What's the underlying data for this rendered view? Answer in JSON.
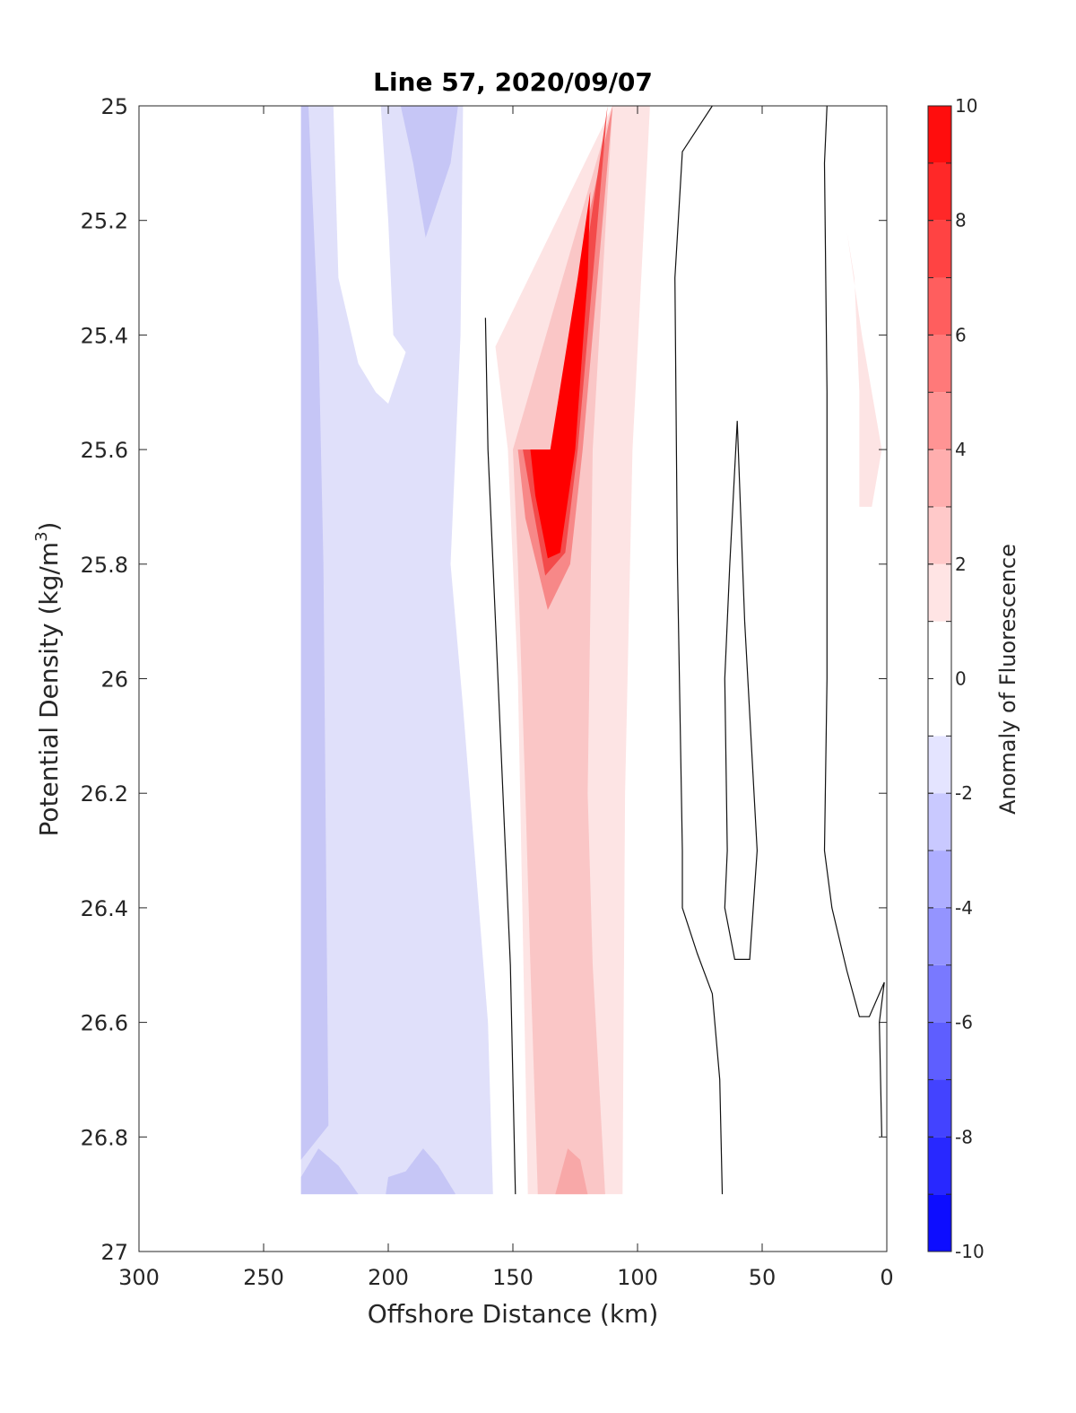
{
  "chart_data": {
    "type": "contour",
    "title": "Line 57, 2020/09/07",
    "xlabel": "Offshore Distance (km)",
    "ylabel": "Potential Density (kg/m^3)",
    "ylabel_main": "Potential Density (kg/m",
    "ylabel_sup": "3",
    "ylabel_end": ")",
    "xlim": [
      0,
      300
    ],
    "x_reversed": true,
    "x_ticks": [
      300,
      250,
      200,
      150,
      100,
      50,
      0
    ],
    "ylim": [
      25,
      27
    ],
    "y_reversed": true,
    "y_ticks": [
      25,
      25.2,
      25.4,
      25.6,
      25.8,
      26,
      26.2,
      26.4,
      26.6,
      26.8,
      27
    ],
    "y_tick_labels": [
      "25",
      "25.2",
      "25.4",
      "25.6",
      "25.8",
      "26",
      "26.2",
      "26.4",
      "26.6",
      "26.8",
      "27"
    ],
    "colorbar": {
      "label": "Anomaly of Fluorescence",
      "range": [
        -10,
        10
      ],
      "levels": [
        -10,
        -9,
        -8,
        -7,
        -6,
        -5,
        -4,
        -3,
        -2,
        -1,
        1,
        2,
        3,
        4,
        5,
        6,
        7,
        8,
        9,
        10
      ],
      "tick_values": [
        -10,
        -8,
        -6,
        -4,
        -2,
        0,
        2,
        4,
        6,
        8,
        10
      ],
      "tick_labels": [
        "-10",
        "-8",
        "-6",
        "-4",
        "-2",
        "0",
        "2",
        "4",
        "6",
        "8",
        "10"
      ]
    },
    "regions": [
      {
        "level": -1,
        "color": "#e0e0fa",
        "points": [
          [
            235,
            25
          ],
          [
            170,
            25
          ],
          [
            171,
            25.4
          ],
          [
            175,
            25.8
          ],
          [
            170,
            26.05
          ],
          [
            160,
            26.6
          ],
          [
            158,
            26.9
          ],
          [
            235,
            26.9
          ]
        ]
      },
      {
        "level": 0,
        "color": "#ffffff",
        "points": [
          [
            222,
            25
          ],
          [
            203,
            25
          ],
          [
            200,
            25.2
          ],
          [
            198,
            25.4
          ],
          [
            193,
            25.43
          ],
          [
            200,
            25.52
          ],
          [
            205,
            25.5
          ],
          [
            212,
            25.45
          ],
          [
            220,
            25.3
          ]
        ]
      },
      {
        "level": -2,
        "color": "#c6c6f6",
        "points": [
          [
            235,
            25
          ],
          [
            232,
            25
          ],
          [
            228,
            25.4
          ],
          [
            226,
            25.8
          ],
          [
            225,
            26.3
          ],
          [
            224,
            26.78
          ],
          [
            235,
            26.84
          ]
        ]
      },
      {
        "level": -2,
        "color": "#c6c6f6",
        "points": [
          [
            195,
            25
          ],
          [
            172,
            25
          ],
          [
            175,
            25.1
          ],
          [
            185,
            25.23
          ],
          [
            190,
            25.1
          ]
        ]
      },
      {
        "level": -2,
        "color": "#c6c6f6",
        "points": [
          [
            235,
            26.87
          ],
          [
            228,
            26.82
          ],
          [
            220,
            26.85
          ],
          [
            212,
            26.9
          ],
          [
            235,
            26.9
          ]
        ]
      },
      {
        "level": -2,
        "color": "#c6c6f6",
        "points": [
          [
            201,
            26.9
          ],
          [
            200,
            26.87
          ],
          [
            193,
            26.86
          ],
          [
            186,
            26.82
          ],
          [
            180,
            26.85
          ],
          [
            173,
            26.9
          ]
        ]
      },
      {
        "level": 1,
        "color": "#fde4e4",
        "points": [
          [
            110,
            25
          ],
          [
            95,
            25
          ],
          [
            102,
            25.6
          ],
          [
            105,
            26.2
          ],
          [
            106,
            26.9
          ],
          [
            144,
            26.9
          ],
          [
            148,
            26
          ],
          [
            152,
            25.6
          ],
          [
            157,
            25.42
          ]
        ]
      },
      {
        "level": 2,
        "color": "#fac6c6",
        "points": [
          [
            110,
            25
          ],
          [
            118,
            25.6
          ],
          [
            120,
            26.2
          ],
          [
            118,
            26.5
          ],
          [
            113,
            26.9
          ],
          [
            140,
            26.9
          ],
          [
            143,
            26.5
          ],
          [
            145,
            26.2
          ],
          [
            148,
            25.8
          ],
          [
            150,
            25.6
          ]
        ]
      },
      {
        "level": 4,
        "color": "#f78888",
        "points": [
          [
            110,
            25
          ],
          [
            116,
            25.3
          ],
          [
            122,
            25.6
          ],
          [
            127,
            25.8
          ],
          [
            136,
            25.88
          ],
          [
            145,
            25.72
          ],
          [
            148,
            25.6
          ],
          [
            132,
            25.6
          ],
          [
            120,
            25.2
          ]
        ]
      },
      {
        "level": 6,
        "color": "#f34a4a",
        "points": [
          [
            112,
            25
          ],
          [
            118,
            25.3
          ],
          [
            124,
            25.6
          ],
          [
            129,
            25.78
          ],
          [
            137,
            25.82
          ],
          [
            142,
            25.7
          ],
          [
            146,
            25.6
          ],
          [
            134,
            25.6
          ],
          [
            122,
            25.3
          ]
        ]
      },
      {
        "level": 9,
        "color": "#ff0000",
        "points": [
          [
            119,
            25.15
          ],
          [
            120,
            25.3
          ],
          [
            125,
            25.6
          ],
          [
            131,
            25.78
          ],
          [
            136,
            25.79
          ],
          [
            141,
            25.68
          ],
          [
            143,
            25.6
          ],
          [
            135,
            25.6
          ],
          [
            124,
            25.3
          ]
        ]
      },
      {
        "level": 3,
        "color": "#f8a8a8",
        "points": [
          [
            133,
            26.9
          ],
          [
            128,
            26.82
          ],
          [
            123,
            26.84
          ],
          [
            120,
            26.9
          ]
        ]
      },
      {
        "level": 1,
        "color": "#fde4e4",
        "points": [
          [
            16,
            25.22
          ],
          [
            13,
            25.3
          ],
          [
            11,
            25.5
          ],
          [
            11,
            25.7
          ],
          [
            6,
            25.7
          ],
          [
            2,
            25.6
          ],
          [
            10,
            25.4
          ]
        ]
      }
    ],
    "contour_lines": [
      {
        "level": 0,
        "points": [
          [
            161,
            25.37
          ],
          [
            160,
            25.6
          ],
          [
            158,
            25.8
          ],
          [
            154,
            26.2
          ],
          [
            151,
            26.5
          ],
          [
            149,
            26.9
          ]
        ]
      },
      {
        "level": 0,
        "points": [
          [
            70,
            25
          ],
          [
            82,
            25.08
          ],
          [
            85,
            25.3
          ],
          [
            84,
            25.8
          ],
          [
            82,
            26.3
          ],
          [
            82,
            26.4
          ],
          [
            76,
            26.48
          ],
          [
            70,
            26.55
          ],
          [
            67,
            26.7
          ],
          [
            66,
            26.9
          ]
        ]
      },
      {
        "level": 0,
        "points": [
          [
            60,
            25.55
          ],
          [
            63,
            25.8
          ],
          [
            65,
            26
          ],
          [
            64,
            26.3
          ],
          [
            65,
            26.4
          ],
          [
            61,
            26.49
          ],
          [
            55,
            26.49
          ],
          [
            52,
            26.3
          ],
          [
            57,
            25.9
          ],
          [
            60,
            25.55
          ]
        ]
      },
      {
        "level": 0,
        "points": [
          [
            24,
            25
          ],
          [
            25,
            25.1
          ],
          [
            24,
            25.5
          ],
          [
            24,
            26
          ],
          [
            25,
            26.3
          ],
          [
            22,
            26.4
          ],
          [
            16,
            26.51
          ],
          [
            11,
            26.59
          ],
          [
            7,
            26.59
          ],
          [
            1,
            26.53
          ],
          [
            3,
            26.6
          ],
          [
            2,
            26.8
          ]
        ]
      }
    ]
  }
}
